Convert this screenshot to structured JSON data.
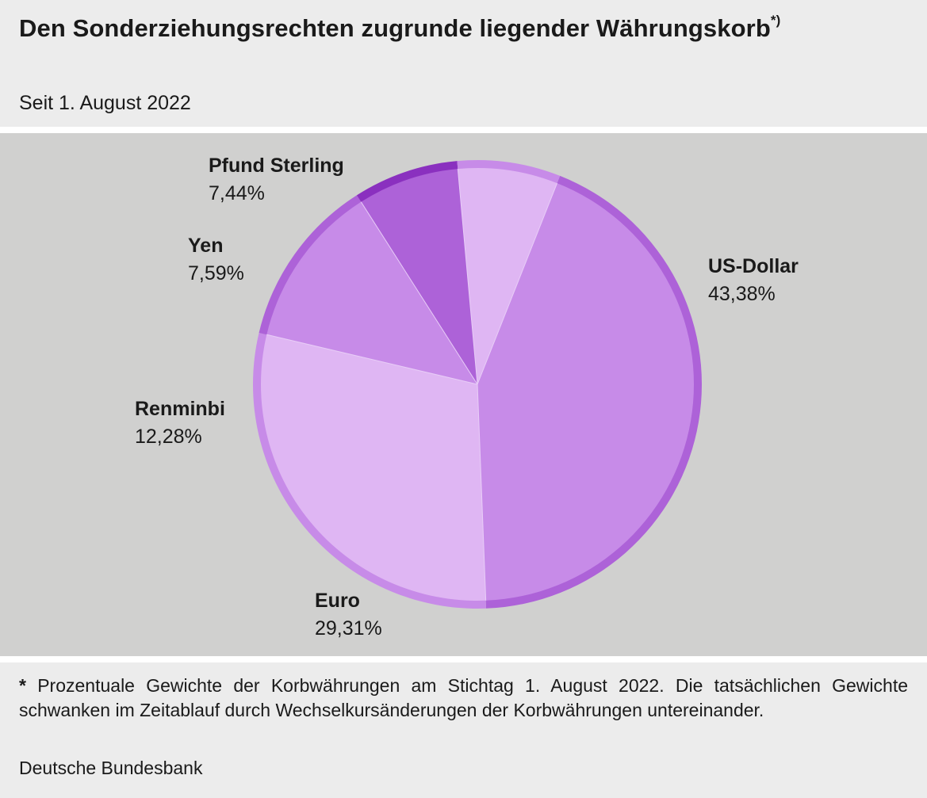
{
  "header": {
    "title": "Den Sonderziehungsrechten zugrunde liegender Währungskorb",
    "title_marker": "*)",
    "subtitle": "Seit 1. August 2022"
  },
  "chart_data": {
    "type": "pie",
    "categories": [
      "US-Dollar",
      "Euro",
      "Renminbi",
      "Yen",
      "Pfund Sterling"
    ],
    "values": [
      43.38,
      29.31,
      12.28,
      7.59,
      7.44
    ],
    "value_labels": [
      "43,38%",
      "29,31%",
      "12,28%",
      "7,59%",
      "7,44%"
    ],
    "unit": "%",
    "colors": {
      "US-Dollar": "#c78be8",
      "Euro": "#dfb6f3",
      "Renminbi": "#c78be8",
      "Yen": "#ad62d8",
      "Pfund Sterling": "#dfb6f3"
    },
    "rim_colors": {
      "US-Dollar": "#ad62d8",
      "Euro": "#c78be8",
      "Renminbi": "#ad62d8",
      "Yen": "#8a30bf",
      "Pfund Sterling": "#c78be8"
    },
    "legend": "none",
    "labels_position": "outside"
  },
  "footer": {
    "footnote_marker": "*",
    "footnote": "Prozentuale Gewichte der Korbwährungen am Stichtag 1. August 2022. Die tatsächlichen Gewichte schwanken im Zeitablauf durch Wechselkursänderungen der Korbwährungen unter­einander.",
    "source": "Deutsche Bundesbank"
  }
}
